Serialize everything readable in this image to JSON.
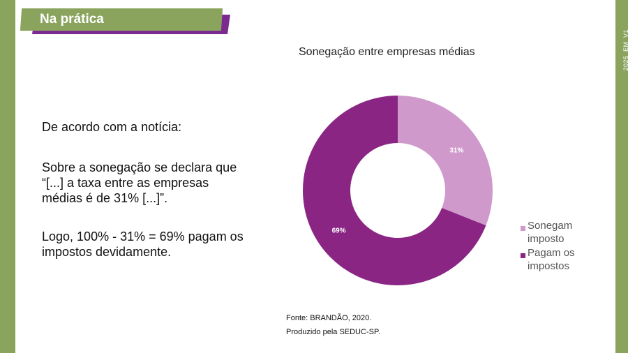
{
  "header": {
    "title": "Na prática"
  },
  "doc_code": "2025_EM_V1",
  "text": {
    "line1": "De acordo com a notícia:",
    "para2": "Sobre a sonegação se declara que “[...] a taxa entre as empresas médias é de 31% [...]”.",
    "para3": "Logo, 100% - 31% = 69% pagam os impostos devidamente."
  },
  "colors": {
    "green": "#8aa45e",
    "purple_dark": "#8b2584",
    "purple_light": "#cf99cc"
  },
  "chart_data": {
    "type": "pie",
    "title": "Sonegação entre empresas médias",
    "donut": true,
    "categories": [
      "Sonegam imposto",
      "Pagam os impostos"
    ],
    "values": [
      31,
      69
    ],
    "data_labels": [
      "31%",
      "69%"
    ],
    "legend_position": "bottom-right"
  },
  "source": {
    "line1": "Fonte: BRANDÃO, 2020.",
    "line2": "Produzido pela SEDUC-SP."
  }
}
